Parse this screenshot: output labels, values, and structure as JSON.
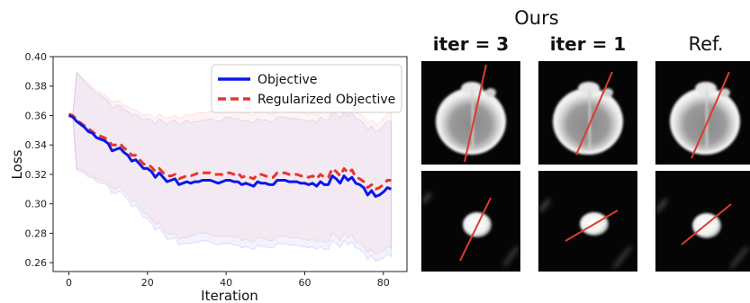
{
  "chart_data": {
    "type": "line",
    "xlabel": "Iteration",
    "ylabel": "Loss",
    "xlim": [
      -4,
      86
    ],
    "ylim": [
      0.254,
      0.4
    ],
    "xticks": [
      0,
      20,
      40,
      60,
      80
    ],
    "yticks": [
      0.26,
      0.28,
      0.3,
      0.32,
      0.34,
      0.36,
      0.38,
      0.4
    ],
    "grid": false,
    "legend_position": "top-right",
    "x": [
      0,
      1,
      2,
      3,
      4,
      5,
      6,
      7,
      8,
      9,
      10,
      11,
      12,
      13,
      14,
      15,
      16,
      17,
      18,
      19,
      20,
      21,
      22,
      23,
      24,
      25,
      26,
      27,
      28,
      29,
      30,
      31,
      32,
      33,
      34,
      35,
      36,
      37,
      38,
      39,
      40,
      41,
      42,
      43,
      44,
      45,
      46,
      47,
      48,
      49,
      50,
      51,
      52,
      53,
      54,
      55,
      56,
      57,
      58,
      59,
      60,
      61,
      62,
      63,
      64,
      65,
      66,
      67,
      68,
      69,
      70,
      71,
      72,
      73,
      74,
      75,
      76,
      77,
      78,
      79,
      80,
      81,
      82
    ],
    "series": [
      {
        "name": "Objective",
        "color": "#0a16e8",
        "style": "solid",
        "values": [
          0.36,
          0.359,
          0.356,
          0.354,
          0.352,
          0.349,
          0.348,
          0.345,
          0.344,
          0.343,
          0.341,
          0.336,
          0.337,
          0.338,
          0.335,
          0.333,
          0.329,
          0.33,
          0.327,
          0.324,
          0.324,
          0.322,
          0.318,
          0.321,
          0.318,
          0.315,
          0.316,
          0.317,
          0.313,
          0.314,
          0.315,
          0.314,
          0.315,
          0.315,
          0.316,
          0.316,
          0.316,
          0.315,
          0.314,
          0.315,
          0.316,
          0.316,
          0.315,
          0.315,
          0.313,
          0.314,
          0.313,
          0.312,
          0.315,
          0.314,
          0.314,
          0.313,
          0.313,
          0.316,
          0.316,
          0.316,
          0.315,
          0.315,
          0.315,
          0.314,
          0.314,
          0.313,
          0.314,
          0.312,
          0.315,
          0.313,
          0.313,
          0.319,
          0.317,
          0.314,
          0.319,
          0.316,
          0.318,
          0.314,
          0.313,
          0.311,
          0.306,
          0.309,
          0.305,
          0.306,
          0.308,
          0.311,
          0.31
        ]
      },
      {
        "name": "Regularized Objective",
        "color": "#e8352b",
        "style": "dashed",
        "values": [
          0.361,
          0.36,
          0.357,
          0.355,
          0.353,
          0.351,
          0.349,
          0.347,
          0.346,
          0.345,
          0.343,
          0.34,
          0.34,
          0.341,
          0.338,
          0.336,
          0.333,
          0.333,
          0.33,
          0.327,
          0.327,
          0.325,
          0.322,
          0.324,
          0.321,
          0.319,
          0.319,
          0.32,
          0.317,
          0.318,
          0.319,
          0.319,
          0.32,
          0.321,
          0.321,
          0.321,
          0.321,
          0.32,
          0.32,
          0.32,
          0.321,
          0.321,
          0.32,
          0.321,
          0.318,
          0.319,
          0.318,
          0.317,
          0.32,
          0.32,
          0.319,
          0.318,
          0.318,
          0.321,
          0.321,
          0.321,
          0.32,
          0.32,
          0.32,
          0.319,
          0.319,
          0.318,
          0.319,
          0.317,
          0.32,
          0.318,
          0.318,
          0.324,
          0.322,
          0.319,
          0.324,
          0.321,
          0.323,
          0.318,
          0.317,
          0.315,
          0.311,
          0.313,
          0.31,
          0.311,
          0.313,
          0.316,
          0.316
        ]
      }
    ],
    "band_spread": [
      0.0,
      0.0,
      0.033,
      0.032,
      0.031,
      0.031,
      0.03,
      0.03,
      0.03,
      0.029,
      0.029,
      0.029,
      0.03,
      0.029,
      0.029,
      0.03,
      0.031,
      0.031,
      0.032,
      0.033,
      0.034,
      0.035,
      0.036,
      0.037,
      0.038,
      0.039,
      0.04,
      0.04,
      0.041,
      0.041,
      0.042,
      0.041,
      0.041,
      0.041,
      0.041,
      0.041,
      0.042,
      0.042,
      0.042,
      0.042,
      0.043,
      0.043,
      0.043,
      0.043,
      0.043,
      0.043,
      0.043,
      0.043,
      0.043,
      0.043,
      0.043,
      0.043,
      0.043,
      0.043,
      0.043,
      0.043,
      0.043,
      0.043,
      0.043,
      0.043,
      0.043,
      0.043,
      0.043,
      0.043,
      0.044,
      0.044,
      0.044,
      0.044,
      0.044,
      0.044,
      0.044,
      0.044,
      0.044,
      0.044,
      0.044,
      0.044,
      0.044,
      0.044,
      0.044,
      0.044,
      0.045,
      0.045,
      0.046
    ]
  },
  "panel": {
    "group_title": "Ours",
    "columns": [
      "iter = 3",
      "iter = 1",
      "Ref."
    ],
    "line_color": "#e03a2a"
  }
}
